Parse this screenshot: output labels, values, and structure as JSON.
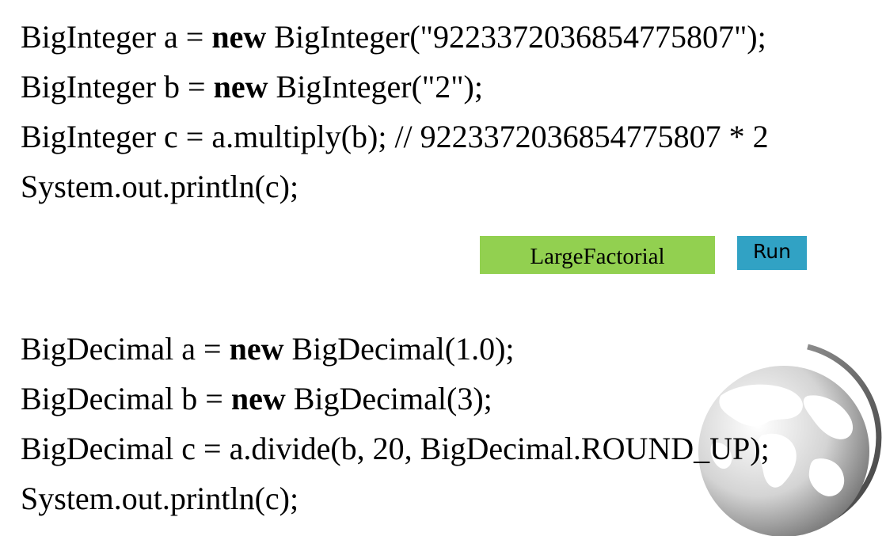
{
  "code_block_1": {
    "lines": [
      [
        {
          "text": "BigInteger a = ",
          "bold": false
        },
        {
          "text": "new",
          "bold": true
        },
        {
          "text": " BigInteger(\"9223372036854775807\");",
          "bold": false
        }
      ],
      [
        {
          "text": "BigInteger b = ",
          "bold": false
        },
        {
          "text": "new",
          "bold": true
        },
        {
          "text": " BigInteger(\"2\");",
          "bold": false
        }
      ],
      [
        {
          "text": "BigInteger c = a.multiply(b); // 9223372036854775807 * 2",
          "bold": false
        }
      ],
      [
        {
          "text": "System.out.println(c);",
          "bold": false
        }
      ]
    ]
  },
  "buttons": {
    "large_factorial_label": "LargeFactorial",
    "run_label": "Run",
    "large_factorial_color": "#92d050",
    "run_color": "#31a2c4"
  },
  "code_block_2": {
    "lines": [
      [
        {
          "text": "BigDecimal a = ",
          "bold": false
        },
        {
          "text": "new",
          "bold": true
        },
        {
          "text": " BigDecimal(1.0);",
          "bold": false
        }
      ],
      [
        {
          "text": "BigDecimal b = ",
          "bold": false
        },
        {
          "text": "new",
          "bold": true
        },
        {
          "text": " BigDecimal(3);",
          "bold": false
        }
      ],
      [
        {
          "text": "BigDecimal c = a.divide(b, 20, BigDecimal.ROUND_UP);",
          "bold": false
        }
      ],
      [
        {
          "text": "System.out.println(c);",
          "bold": false
        }
      ]
    ]
  },
  "decoration": {
    "icon": "globe-icon"
  }
}
